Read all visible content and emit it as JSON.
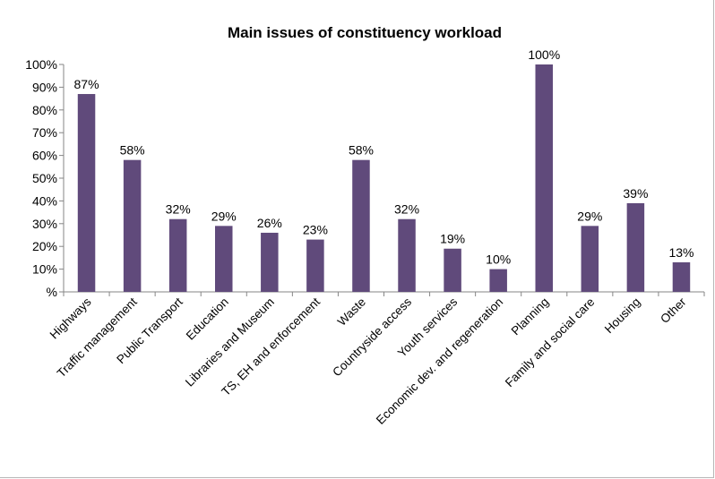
{
  "chart_data": {
    "type": "bar",
    "title": "Main issues of constituency workload",
    "xlabel": "",
    "ylabel": "",
    "ylim": [
      0,
      100
    ],
    "y_ticks": [
      "%",
      "10%",
      "20%",
      "30%",
      "40%",
      "50%",
      "60%",
      "70%",
      "80%",
      "90%",
      "100%"
    ],
    "categories": [
      "Highways",
      "Traffic management",
      "Public Transport",
      "Education",
      "Libraries and Museum",
      "TS, EH and enforcement",
      "Waste",
      "Countryside access",
      "Youth services",
      "Economic dev. and regeneration",
      "Planning",
      "Family and social care",
      "Housing",
      "Other"
    ],
    "values": [
      87,
      58,
      32,
      29,
      26,
      23,
      58,
      32,
      19,
      10,
      100,
      29,
      39,
      13
    ],
    "data_labels": [
      "87%",
      "58%",
      "32%",
      "29%",
      "26%",
      "23%",
      "58%",
      "32%",
      "19%",
      "10%",
      "100%",
      "29%",
      "39%",
      "13%"
    ],
    "bar_color": "#604a7b",
    "grid": false,
    "legend": "none"
  }
}
